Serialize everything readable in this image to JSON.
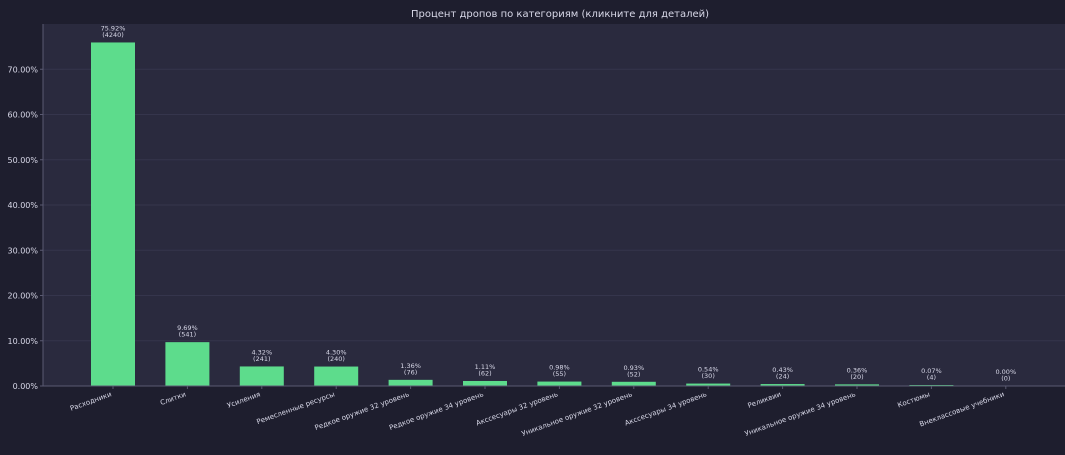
{
  "colors": {
    "background": "#1e1e2e",
    "plot_background": "#2a2a3e",
    "bar": "#5ddc8c",
    "text": "#d8d8e8",
    "grid": "#35354c",
    "axis": "#5a5a72"
  },
  "chart_data": {
    "type": "bar",
    "title": "Процент дропов по категориям  (кликните для деталей)",
    "xlabel": "",
    "ylabel": "",
    "ylim": [
      0,
      80
    ],
    "yticks": [
      "0.00%",
      "10.00%",
      "20.00%",
      "30.00%",
      "40.00%",
      "50.00%",
      "60.00%",
      "70.00%"
    ],
    "grid": true,
    "categories": [
      "Расходники",
      "Слитки",
      "Усиления",
      "Ремесленные ресурсы",
      "Редкое оружие 32 уровень",
      "Редкое оружие 34 уровень",
      "Акссесуары 32 уровень",
      "Уникальное оружие 32 уровень",
      "Акссесуары 34 уровень",
      "Реликвии",
      "Уникальное оружие 34 уровень",
      "Костюмы",
      "Внеклассовые учебники"
    ],
    "values": [
      75.92,
      9.69,
      4.32,
      4.3,
      1.36,
      1.11,
      0.98,
      0.93,
      0.54,
      0.43,
      0.36,
      0.07,
      0.0
    ],
    "percent_labels": [
      "75.92%",
      "9.69%",
      "4.32%",
      "4.30%",
      "1.36%",
      "1.11%",
      "0.98%",
      "0.93%",
      "0.54%",
      "0.43%",
      "0.36%",
      "0.07%",
      "0.00%"
    ],
    "count_labels": [
      "(4240)",
      "(541)",
      "(241)",
      "(240)",
      "(76)",
      "(62)",
      "(55)",
      "(52)",
      "(30)",
      "(24)",
      "(20)",
      "(4)",
      "(0)"
    ]
  }
}
